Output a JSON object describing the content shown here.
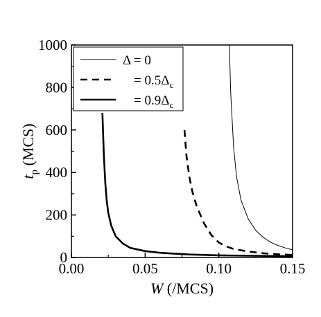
{
  "chart_data": {
    "type": "line",
    "title": "",
    "xlabel": {
      "var": "W",
      "unit": " (/MCS)"
    },
    "ylabel": {
      "var": "t",
      "sub": "p",
      "unit": " (MCS)"
    },
    "xlim": [
      0.0,
      0.15
    ],
    "ylim": [
      0,
      1000
    ],
    "xticks": [
      0.0,
      0.05,
      0.1,
      0.15
    ],
    "xtick_labels": [
      "0.00",
      "0.05",
      "0.10",
      "0.15"
    ],
    "yticks": [
      0,
      200,
      400,
      600,
      800,
      1000
    ],
    "ytick_labels": [
      "0",
      "200",
      "400",
      "600",
      "800",
      "1000"
    ],
    "grid": false,
    "legend_position": "top-left",
    "series": [
      {
        "name": "Δ = 0",
        "legend": {
          "prefix": "Δ = ",
          "value": "0",
          "sub": ""
        },
        "style": "thin-solid",
        "x": [
          0.1071,
          0.108,
          0.11,
          0.112,
          0.115,
          0.12,
          0.125,
          0.13,
          0.135,
          0.14,
          0.145,
          0.15
        ],
        "y": [
          1000,
          780,
          520,
          380,
          270,
          180,
          128,
          95,
          72,
          57,
          45,
          36
        ]
      },
      {
        "name": "= 0.5Δc",
        "legend": {
          "prefix": "= ",
          "value": "0.5Δ",
          "sub": "c"
        },
        "style": "dashed",
        "x": [
          0.0767,
          0.078,
          0.08,
          0.082,
          0.085,
          0.09,
          0.095,
          0.1,
          0.105,
          0.11,
          0.12,
          0.13,
          0.14,
          0.15
        ],
        "y": [
          600,
          480,
          380,
          310,
          240,
          160,
          105,
          70,
          52,
          40,
          28,
          20,
          15,
          12
        ]
      },
      {
        "name": "= 0.9Δc",
        "legend": {
          "prefix": "= ",
          "value": "0.9Δ",
          "sub": "c"
        },
        "style": "thick-solid",
        "x": [
          0.021,
          0.022,
          0.023,
          0.024,
          0.025,
          0.027,
          0.03,
          0.035,
          0.04,
          0.05,
          0.06,
          0.08,
          0.1,
          0.12,
          0.15
        ],
        "y": [
          680,
          480,
          350,
          265,
          210,
          150,
          100,
          65,
          45,
          30,
          22,
          14,
          10,
          8,
          6
        ]
      }
    ]
  }
}
